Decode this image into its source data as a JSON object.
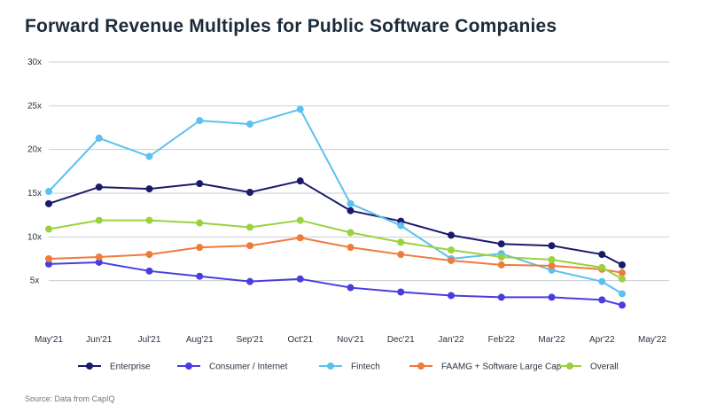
{
  "chart_data": {
    "type": "line",
    "title": "Forward Revenue Multiples for Public Software Companies",
    "source": "Source: Data from CapIQ",
    "categories": [
      "May'21",
      "Jun'21",
      "Jul'21",
      "Aug'21",
      "Sep'21",
      "Oct'21",
      "Nov'21",
      "Dec'21",
      "Jan'22",
      "Feb'22",
      "Mar'22",
      "Apr'22",
      "May'22"
    ],
    "y_ticks": [
      {
        "value": 5,
        "label": "5x"
      },
      {
        "value": 10,
        "label": "10x"
      },
      {
        "value": 15,
        "label": "15x"
      },
      {
        "value": 20,
        "label": "20x"
      },
      {
        "value": 25,
        "label": "25x"
      },
      {
        "value": 30,
        "label": "30x"
      }
    ],
    "ylim": [
      0,
      30
    ],
    "grid": true,
    "legend_position": "bottom",
    "series": [
      {
        "name": "Enterprise",
        "color": "#1a1a6b",
        "x": [
          0,
          1,
          2,
          3,
          4,
          5,
          6,
          7,
          8,
          9,
          10,
          11,
          11.4
        ],
        "values": [
          13.8,
          15.7,
          15.5,
          16.1,
          15.1,
          16.4,
          13.0,
          11.8,
          10.2,
          9.2,
          9.0,
          8.0,
          6.8
        ]
      },
      {
        "name": "Consumer / Internet",
        "color": "#4a3de0",
        "x": [
          0,
          1,
          2,
          3,
          4,
          5,
          6,
          7,
          8,
          9,
          10,
          11,
          11.4
        ],
        "values": [
          6.9,
          7.1,
          6.1,
          5.5,
          4.9,
          5.2,
          4.2,
          3.7,
          3.3,
          3.1,
          3.1,
          2.8,
          2.2
        ]
      },
      {
        "name": "Fintech",
        "color": "#5cc0f0",
        "x": [
          0,
          1,
          2,
          3,
          4,
          5,
          6,
          7,
          8,
          9,
          10,
          11,
          11.4
        ],
        "values": [
          15.2,
          21.3,
          19.2,
          23.3,
          22.9,
          24.6,
          13.8,
          11.3,
          7.5,
          8.1,
          6.2,
          4.9,
          3.5
        ]
      },
      {
        "name": "FAAMG + Software Large Cap",
        "color": "#f07a3a",
        "x": [
          0,
          1,
          2,
          3,
          4,
          5,
          6,
          7,
          8,
          9,
          10,
          11,
          11.4
        ],
        "values": [
          7.5,
          7.7,
          8.0,
          8.8,
          9.0,
          9.9,
          8.8,
          8.0,
          7.3,
          6.8,
          6.7,
          6.3,
          5.9
        ]
      },
      {
        "name": "Overall",
        "color": "#9ad23e",
        "x": [
          0,
          1,
          2,
          3,
          4,
          5,
          6,
          7,
          8,
          9,
          10,
          11,
          11.4
        ],
        "values": [
          10.9,
          11.9,
          11.9,
          11.6,
          11.1,
          11.9,
          10.5,
          9.4,
          8.5,
          7.7,
          7.4,
          6.5,
          5.2
        ]
      }
    ]
  }
}
